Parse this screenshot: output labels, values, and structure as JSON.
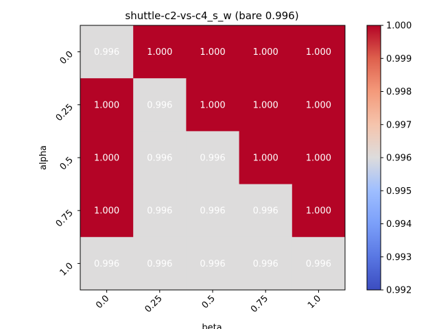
{
  "chart_data": {
    "type": "heatmap",
    "title": "shuttle-c2-vs-c4_s_w (bare 0.996)",
    "xlabel": "beta",
    "ylabel": "alpha",
    "x_categories": [
      "0.0",
      "0.25",
      "0.5",
      "0.75",
      "1.0"
    ],
    "y_categories": [
      "0.0",
      "0.25",
      "0.5",
      "0.75",
      "1.0"
    ],
    "values": [
      [
        0.996,
        1.0,
        1.0,
        1.0,
        1.0
      ],
      [
        1.0,
        0.996,
        1.0,
        1.0,
        1.0
      ],
      [
        1.0,
        0.996,
        0.996,
        1.0,
        1.0
      ],
      [
        1.0,
        0.996,
        0.996,
        0.996,
        1.0
      ],
      [
        0.996,
        0.996,
        0.996,
        0.996,
        0.996
      ]
    ],
    "cell_labels": [
      [
        "0.996",
        "1.000",
        "1.000",
        "1.000",
        "1.000"
      ],
      [
        "1.000",
        "0.996",
        "1.000",
        "1.000",
        "1.000"
      ],
      [
        "1.000",
        "0.996",
        "0.996",
        "1.000",
        "1.000"
      ],
      [
        "1.000",
        "0.996",
        "0.996",
        "0.996",
        "1.000"
      ],
      [
        "0.996",
        "0.996",
        "0.996",
        "0.996",
        "0.996"
      ]
    ],
    "colormap": "coolwarm",
    "vmin": 0.992,
    "vmax": 1.0,
    "colorbar_ticks": [
      "0.992",
      "0.993",
      "0.994",
      "0.995",
      "0.996",
      "0.997",
      "0.998",
      "0.999",
      "1.000"
    ],
    "colors": {
      "high": "#b40426",
      "mid": "#dddcdc",
      "low": "#3b4cc0",
      "cell_text": "#ffffff"
    },
    "grid": false
  }
}
